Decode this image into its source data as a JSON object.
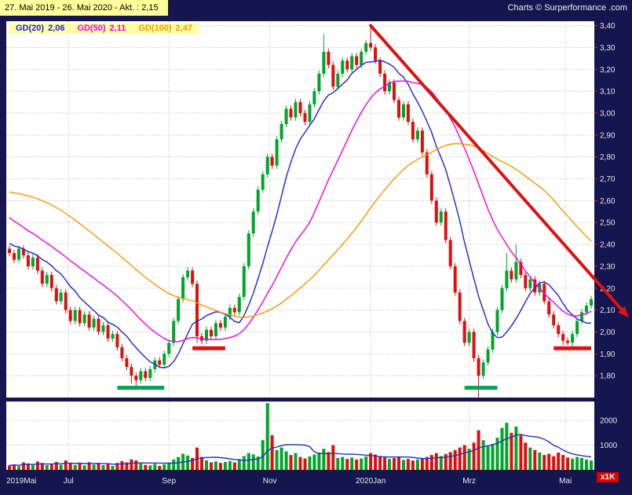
{
  "header": {
    "date_range": "27. Mai 2019 - 26. Mai 2020 - Akt. : 2,15",
    "credit": "Charts © Surperformance .com"
  },
  "legend": [
    {
      "label": "GD(20)",
      "value": "2,06",
      "color": "#2222cc"
    },
    {
      "label": "GD(50)",
      "value": "2,11",
      "color": "#ee00dd"
    },
    {
      "label": "GD(100)",
      "value": "2,47",
      "color": "#ee9900"
    }
  ],
  "axes": {
    "y_min": 1.7,
    "y_max": 3.42,
    "y_ticks": [
      {
        "text": "3,40",
        "value": 3.4
      },
      {
        "text": "3,30",
        "value": 3.3
      },
      {
        "text": "3,20",
        "value": 3.2
      },
      {
        "text": "3,10",
        "value": 3.1
      },
      {
        "text": "3,00",
        "value": 3.0
      },
      {
        "text": "2,90",
        "value": 2.9
      },
      {
        "text": "2,80",
        "value": 2.8
      },
      {
        "text": "2,70",
        "value": 2.7
      },
      {
        "text": "2,60",
        "value": 2.6
      },
      {
        "text": "2,50",
        "value": 2.5
      },
      {
        "text": "2,40",
        "value": 2.4
      },
      {
        "text": "2,30",
        "value": 2.3
      },
      {
        "text": "2,20",
        "value": 2.2
      },
      {
        "text": "2,10",
        "value": 2.1
      },
      {
        "text": "2,00",
        "value": 2.0
      },
      {
        "text": "1,90",
        "value": 1.9
      },
      {
        "text": "1,80",
        "value": 1.8
      }
    ],
    "x_ticks": [
      {
        "text": "2019Mai",
        "index": 0,
        "grid": false,
        "align": "start"
      },
      {
        "text": "Jul",
        "index": 12.6,
        "grid": true
      },
      {
        "text": "Sep",
        "index": 34,
        "grid": true
      },
      {
        "text": "Nov",
        "index": 55.5,
        "grid": true
      },
      {
        "text": "2020Jan",
        "index": 77,
        "grid": true
      },
      {
        "text": "Mrz",
        "index": 98,
        "grid": true
      },
      {
        "text": "Mai",
        "index": 118.5,
        "grid": true
      }
    ],
    "volume_ticks": [
      {
        "text": "2000",
        "value": 2000
      },
      {
        "text": "1000",
        "value": 1000
      }
    ],
    "volume_unit": "x1K"
  },
  "chart_data": {
    "type": "candlestick",
    "title": "27. Mai 2019 - 26. Mai 2020 - Akt. : 2,15",
    "ylim": [
      1.8,
      3.4
    ],
    "current_price": 2.15,
    "first_open": 2.38,
    "closes": [
      2.36,
      2.33,
      2.38,
      2.35,
      2.3,
      2.34,
      2.28,
      2.22,
      2.26,
      2.2,
      2.14,
      2.18,
      2.1,
      2.05,
      2.1,
      2.04,
      2.08,
      2.02,
      2.06,
      2.0,
      2.03,
      1.97,
      1.99,
      1.93,
      1.88,
      1.84,
      1.8,
      1.78,
      1.82,
      1.79,
      1.83,
      1.87,
      1.85,
      1.9,
      1.95,
      2.05,
      2.15,
      2.25,
      2.28,
      2.22,
      1.98,
      1.96,
      2.01,
      1.98,
      2.04,
      2.02,
      2.07,
      2.11,
      2.09,
      2.16,
      2.3,
      2.45,
      2.55,
      2.65,
      2.72,
      2.8,
      2.76,
      2.88,
      2.95,
      3.02,
      2.98,
      3.05,
      3.0,
      2.96,
      3.04,
      3.1,
      3.18,
      3.28,
      3.22,
      3.12,
      3.18,
      3.24,
      3.2,
      3.26,
      3.22,
      3.28,
      3.32,
      3.3,
      3.24,
      3.18,
      3.1,
      3.14,
      3.06,
      2.98,
      3.04,
      2.96,
      2.88,
      2.92,
      2.82,
      2.72,
      2.6,
      2.5,
      2.55,
      2.42,
      2.3,
      2.18,
      2.05,
      1.95,
      2.0,
      1.88,
      1.8,
      1.86,
      1.92,
      2.0,
      2.1,
      2.2,
      2.28,
      2.24,
      2.32,
      2.26,
      2.2,
      2.24,
      2.18,
      2.22,
      2.14,
      2.08,
      2.03,
      1.99,
      1.96,
      1.95,
      1.99,
      2.05,
      2.09,
      2.12,
      2.15
    ],
    "volumes": [
      180,
      220,
      150,
      300,
      260,
      200,
      340,
      280,
      190,
      240,
      320,
      210,
      380,
      290,
      200,
      250,
      180,
      310,
      220,
      270,
      190,
      230,
      160,
      280,
      350,
      300,
      420,
      380,
      250,
      200,
      180,
      240,
      160,
      220,
      300,
      420,
      520,
      650,
      580,
      480,
      900,
      520,
      380,
      300,
      340,
      280,
      320,
      360,
      300,
      420,
      560,
      680,
      620,
      540,
      1200,
      2700,
      1400,
      800,
      900,
      750,
      600,
      680,
      520,
      460,
      540,
      620,
      700,
      850,
      720,
      1000,
      480,
      520,
      440,
      500,
      420,
      460,
      540,
      680,
      620,
      560,
      500,
      440,
      480,
      520,
      400,
      440,
      380,
      420,
      460,
      520,
      600,
      680,
      560,
      640,
      720,
      800,
      900,
      1000,
      850,
      1100,
      1600,
      1200,
      950,
      1050,
      1300,
      1700,
      1900,
      1500,
      1750,
      1400,
      1100,
      900,
      800,
      700,
      600,
      650,
      550,
      700,
      600,
      500,
      450,
      520,
      480,
      420,
      380
    ],
    "wick_overrides": {
      "26": {
        "l": 1.765
      },
      "27": {
        "l": 1.75
      },
      "40": {
        "l": 1.95
      },
      "67": {
        "h": 3.36
      },
      "77": {
        "h": 3.39
      },
      "100": {
        "l": 1.7
      },
      "106": {
        "h": 2.36
      },
      "108": {
        "h": 2.4
      },
      "118": {
        "l": 1.94
      },
      "119": {
        "l": 1.94
      }
    },
    "pre_closes": [
      2.5,
      2.52,
      2.55,
      2.58,
      2.6,
      2.62,
      2.65,
      2.68,
      2.7,
      2.72,
      2.75,
      2.78,
      2.8,
      2.82,
      2.85,
      2.87,
      2.88,
      2.9,
      2.9,
      2.88,
      2.86,
      2.84,
      2.82,
      2.8,
      2.78,
      2.76,
      2.74,
      2.72,
      2.7,
      2.68,
      2.66,
      2.64,
      2.62,
      2.6,
      2.58,
      2.56,
      2.54,
      2.52,
      2.5,
      2.48,
      2.46,
      2.45,
      2.44,
      2.43,
      2.42,
      2.41,
      2.4,
      2.39,
      2.38,
      2.37
    ],
    "moving_averages": [
      {
        "name": "GD(20)",
        "window": 10,
        "color": "#2222cc",
        "current": "2,06"
      },
      {
        "name": "GD(50)",
        "window": 25,
        "color": "#ee00dd",
        "current": "2,11"
      },
      {
        "name": "GD(100)",
        "window": 50,
        "color": "#ee9900",
        "current": "2,47"
      }
    ],
    "volume_ma_color": "#2233bb",
    "candle_colors": {
      "up": "#00a52c",
      "down": "#dd0f0f"
    },
    "trendline": {
      "from_index": 77,
      "from_price": 3.4,
      "to_index": 131,
      "to_price": 2.09,
      "color": "#d81414"
    },
    "markers": [
      {
        "type": "support",
        "color": "#00а651",
        "from_index": 23,
        "to_index": 33,
        "price": 1.745
      },
      {
        "type": "support",
        "color": "#00a651",
        "from_index": 97,
        "to_index": 104,
        "price": 1.745
      },
      {
        "type": "resistance",
        "color": "#d81414",
        "from_index": 39,
        "to_index": 46,
        "price": 1.925
      },
      {
        "type": "resistance",
        "color": "#d81414",
        "from_index": 116,
        "to_index": 124,
        "price": 1.925
      }
    ]
  }
}
